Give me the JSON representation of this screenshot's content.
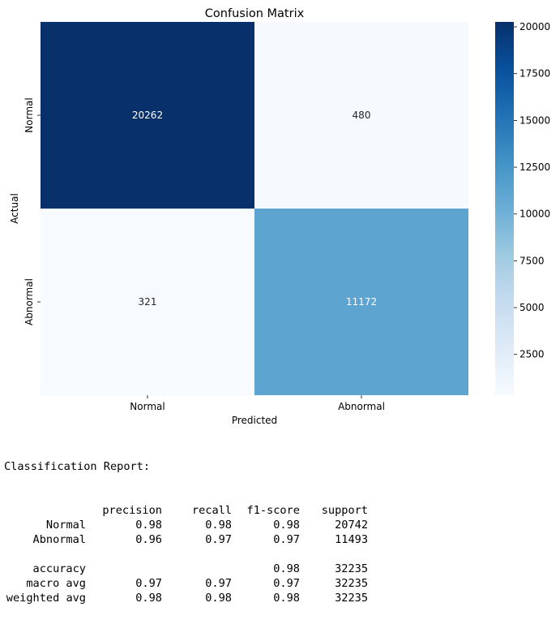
{
  "chart_data": {
    "type": "heatmap",
    "title": "Confusion Matrix",
    "xlabel": "Predicted",
    "ylabel": "Actual",
    "x_categories": [
      "Normal",
      "Abnormal"
    ],
    "y_categories": [
      "Normal",
      "Abnormal"
    ],
    "values": [
      [
        20262,
        480
      ],
      [
        321,
        11172
      ]
    ],
    "colormap": "Blues",
    "colorbar": {
      "min": 321,
      "max": 20262,
      "ticks": [
        2500,
        5000,
        7500,
        10000,
        12500,
        15000,
        17500,
        20000
      ]
    }
  },
  "report": {
    "title": "Classification Report:",
    "header": [
      "",
      "precision",
      "recall",
      "f1-score",
      "support"
    ],
    "rows": [
      [
        "Normal",
        "0.98",
        "0.98",
        "0.98",
        "20742"
      ],
      [
        "Abnormal",
        "0.96",
        "0.97",
        "0.97",
        "11493"
      ],
      [
        "",
        "",
        "",
        "",
        ""
      ],
      [
        "accuracy",
        "",
        "",
        "0.98",
        "32235"
      ],
      [
        "macro avg",
        "0.97",
        "0.97",
        "0.97",
        "32235"
      ],
      [
        "weighted avg",
        "0.98",
        "0.98",
        "0.98",
        "32235"
      ]
    ]
  }
}
